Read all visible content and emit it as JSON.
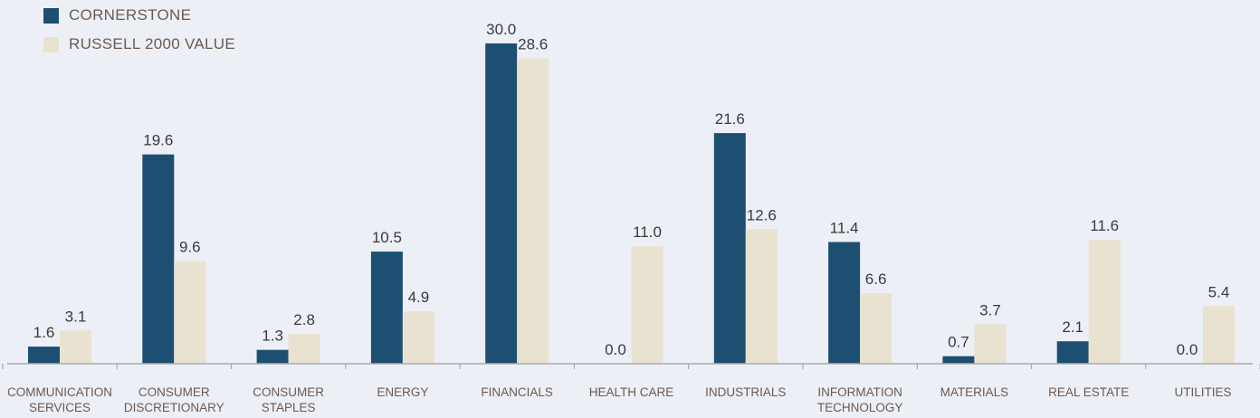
{
  "colors": {
    "cornerstone": "#1C4F72",
    "russell": "#E9E2D0",
    "axis": "#A9AAAF",
    "text": "#3A3A3A",
    "label": "#6B5A50"
  },
  "legend": [
    {
      "label": "CORNERSTONE",
      "color": "#1C4F72"
    },
    {
      "label": "RUSSELL 2000 VALUE",
      "color": "#E9E2D0"
    }
  ],
  "chart_data": {
    "type": "bar",
    "categories": [
      [
        "COMMUNICATION",
        "SERVICES"
      ],
      [
        "CONSUMER",
        "DISCRETIONARY"
      ],
      [
        "CONSUMER",
        "STAPLES"
      ],
      [
        "ENERGY"
      ],
      [
        "FINANCIALS"
      ],
      [
        "HEALTH CARE"
      ],
      [
        "INDUSTRIALS"
      ],
      [
        "INFORMATION",
        "TECHNOLOGY"
      ],
      [
        "MATERIALS"
      ],
      [
        "REAL ESTATE"
      ],
      [
        "UTILITIES"
      ]
    ],
    "series": [
      {
        "name": "CORNERSTONE",
        "color": "#1C4F72",
        "values": [
          1.6,
          19.6,
          1.3,
          10.5,
          30.0,
          0.0,
          21.6,
          11.4,
          0.7,
          2.1,
          0.0
        ]
      },
      {
        "name": "RUSSELL 2000 VALUE",
        "color": "#E9E2D0",
        "values": [
          3.1,
          9.6,
          2.8,
          4.9,
          28.6,
          11.0,
          12.6,
          6.6,
          3.7,
          11.6,
          5.4
        ]
      }
    ],
    "ylim": [
      0,
      30
    ],
    "data_labels": true,
    "legend_position": "top-left",
    "grid": false
  }
}
